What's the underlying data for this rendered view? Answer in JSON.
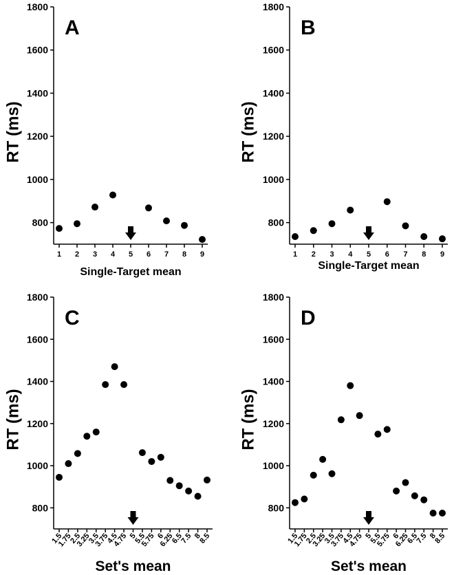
{
  "chart_data": [
    {
      "type": "scatter",
      "panel_label": "A",
      "xlabel": "Single-Target mean",
      "ylabel": "RT (ms)",
      "ylim": [
        700,
        1800
      ],
      "yticks": [
        800,
        1000,
        1200,
        1400,
        1600,
        1800
      ],
      "categories": [
        "1",
        "2",
        "3",
        "4",
        "5",
        "6",
        "7",
        "8",
        "9"
      ],
      "values": [
        773,
        795,
        872,
        928,
        null,
        868,
        808,
        787,
        722
      ],
      "marker_category": "5",
      "marker": "down-arrow",
      "grid": false
    },
    {
      "type": "scatter",
      "panel_label": "B",
      "xlabel": "Single-Target mean",
      "ylabel": "RT (ms)",
      "ylim": [
        700,
        1800
      ],
      "yticks": [
        800,
        1000,
        1200,
        1400,
        1600,
        1800
      ],
      "categories": [
        "1",
        "2",
        "3",
        "4",
        "5",
        "6",
        "7",
        "8",
        "9"
      ],
      "values": [
        735,
        763,
        795,
        858,
        null,
        897,
        785,
        735,
        725
      ],
      "marker_category": "5",
      "marker": "down-arrow",
      "grid": false
    },
    {
      "type": "scatter",
      "panel_label": "C",
      "xlabel": "Set's mean",
      "ylabel": "RT (ms)",
      "ylim": [
        700,
        1800
      ],
      "yticks": [
        800,
        1000,
        1200,
        1400,
        1600,
        1800
      ],
      "categories": [
        "1.5",
        "1.75",
        "2.5",
        "3.25",
        "3.5",
        "3.75",
        "4.5",
        "4.75",
        "5",
        "5.5",
        "5.75",
        "6",
        "6.25",
        "6.5",
        "7.5",
        "8",
        "8.5"
      ],
      "values": [
        945,
        1010,
        1058,
        1140,
        1160,
        1385,
        1470,
        1385,
        null,
        1062,
        1020,
        1040,
        930,
        905,
        880,
        855,
        932
      ],
      "marker_category": "5",
      "marker": "down-arrow",
      "grid": false
    },
    {
      "type": "scatter",
      "panel_label": "D",
      "xlabel": "Set's mean",
      "ylabel": "RT (ms)",
      "ylim": [
        700,
        1800
      ],
      "yticks": [
        800,
        1000,
        1200,
        1400,
        1600,
        1800
      ],
      "categories": [
        "1.5",
        "1.75",
        "2.5",
        "3.25",
        "3.5",
        "3.75",
        "4.5",
        "4.75",
        "5",
        "5.5",
        "5.75",
        "6",
        "6.25",
        "6.5",
        "7.5",
        "8",
        "8.5"
      ],
      "values": [
        825,
        842,
        955,
        1030,
        962,
        1218,
        1380,
        1238,
        null,
        1150,
        1172,
        880,
        920,
        857,
        838,
        775,
        775
      ],
      "marker_category": "5",
      "marker": "down-arrow",
      "grid": false
    }
  ]
}
